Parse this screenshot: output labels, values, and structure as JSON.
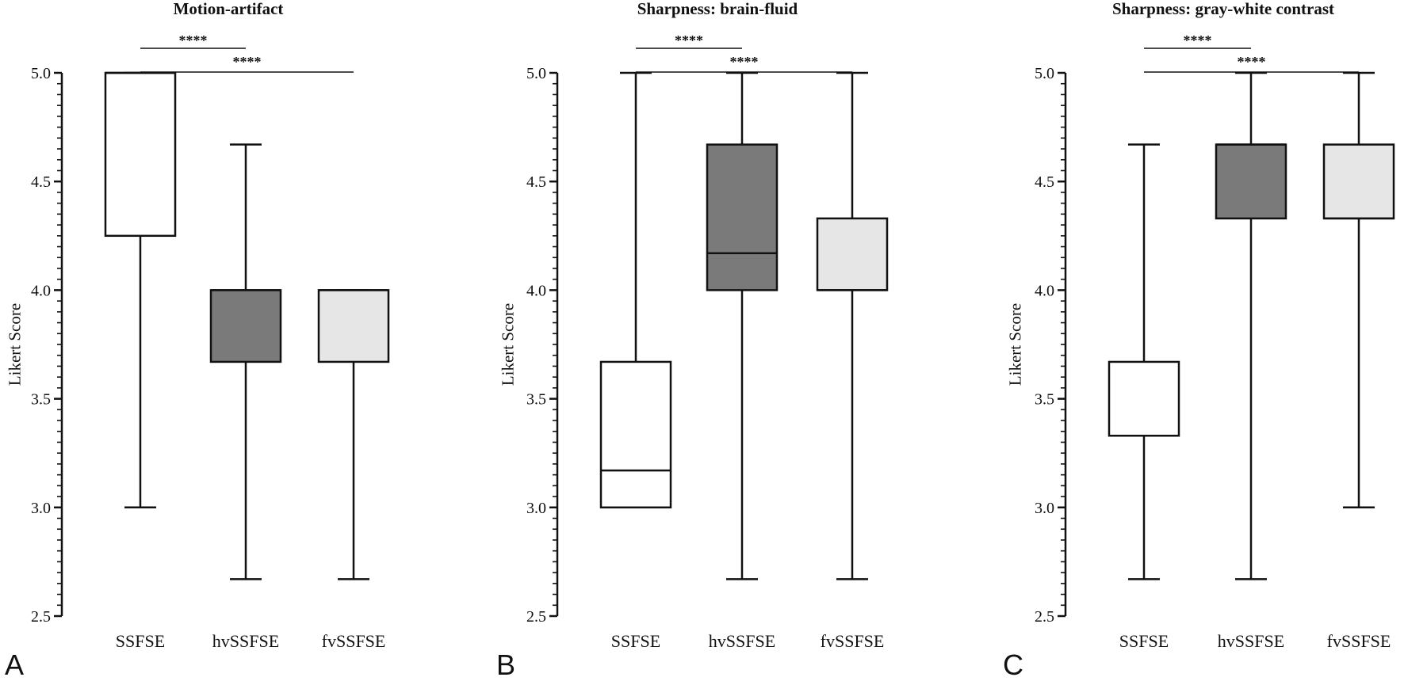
{
  "chart_data": [
    {
      "type": "box",
      "panel_letter": "A",
      "title": "Motion-artifact",
      "xlabel": "",
      "ylabel": "Likert  Score",
      "ylim": [
        2.5,
        5.0
      ],
      "yticks": [
        "2.5",
        "3.0",
        "3.5",
        "4.0",
        "4.5",
        "5.0"
      ],
      "categories": [
        "SSFSE",
        "hvSSFSE",
        "fvSSFSE"
      ],
      "boxes": [
        {
          "category": "SSFSE",
          "min": 3.0,
          "q1": 4.25,
          "median": 5.0,
          "q3": 5.0,
          "max": 5.0,
          "fill": "#ffffff"
        },
        {
          "category": "hvSSFSE",
          "min": 2.67,
          "q1": 3.67,
          "median": 4.0,
          "q3": 4.0,
          "max": 4.67,
          "fill": "#7a7a7a"
        },
        {
          "category": "fvSSFSE",
          "min": 2.67,
          "q1": 3.67,
          "median": 4.0,
          "q3": 4.0,
          "max": 4.0,
          "fill": "#e6e6e6"
        }
      ],
      "significance": [
        {
          "from": "SSFSE",
          "to": "hvSSFSE",
          "label": "****"
        },
        {
          "from": "SSFSE",
          "to": "fvSSFSE",
          "label": "****"
        }
      ]
    },
    {
      "type": "box",
      "panel_letter": "B",
      "title": "Sharpness: brain-fluid",
      "xlabel": "",
      "ylabel": "Likert Score",
      "ylim": [
        2.5,
        5.0
      ],
      "yticks": [
        "2.5",
        "3.0",
        "3.5",
        "4.0",
        "4.5",
        "5.0"
      ],
      "categories": [
        "SSFSE",
        "hvSSFSE",
        "fvSSFSE"
      ],
      "boxes": [
        {
          "category": "SSFSE",
          "min": 3.0,
          "q1": 3.0,
          "median": 3.17,
          "q3": 3.67,
          "max": 5.0,
          "fill": "#ffffff"
        },
        {
          "category": "hvSSFSE",
          "min": 2.67,
          "q1": 4.0,
          "median": 4.17,
          "q3": 4.67,
          "max": 5.0,
          "fill": "#7a7a7a"
        },
        {
          "category": "fvSSFSE",
          "min": 2.67,
          "q1": 4.0,
          "median": 4.0,
          "q3": 4.33,
          "max": 5.0,
          "fill": "#e6e6e6"
        }
      ],
      "significance": [
        {
          "from": "SSFSE",
          "to": "hvSSFSE",
          "label": "****"
        },
        {
          "from": "SSFSE",
          "to": "fvSSFSE",
          "label": "****"
        }
      ]
    },
    {
      "type": "box",
      "panel_letter": "C",
      "title": "Sharpness: gray-white contrast",
      "xlabel": "",
      "ylabel": "Likert Score",
      "ylim": [
        2.5,
        5.0
      ],
      "yticks": [
        "2.5",
        "3.0",
        "3.5",
        "4.0",
        "4.5",
        "5.0"
      ],
      "categories": [
        "SSFSE",
        "hvSSFSE",
        "fvSSFSE"
      ],
      "boxes": [
        {
          "category": "SSFSE",
          "min": 2.67,
          "q1": 3.33,
          "median": 3.33,
          "q3": 3.67,
          "max": 4.67,
          "fill": "#ffffff"
        },
        {
          "category": "hvSSFSE",
          "min": 2.67,
          "q1": 4.33,
          "median": 4.67,
          "q3": 4.67,
          "max": 5.0,
          "fill": "#7a7a7a"
        },
        {
          "category": "fvSSFSE",
          "min": 3.0,
          "q1": 4.33,
          "median": 4.33,
          "q3": 4.67,
          "max": 5.0,
          "fill": "#e6e6e6"
        }
      ],
      "significance": [
        {
          "from": "SSFSE",
          "to": "hvSSFSE",
          "label": "****"
        },
        {
          "from": "SSFSE",
          "to": "fvSSFSE",
          "label": "****"
        }
      ]
    }
  ]
}
